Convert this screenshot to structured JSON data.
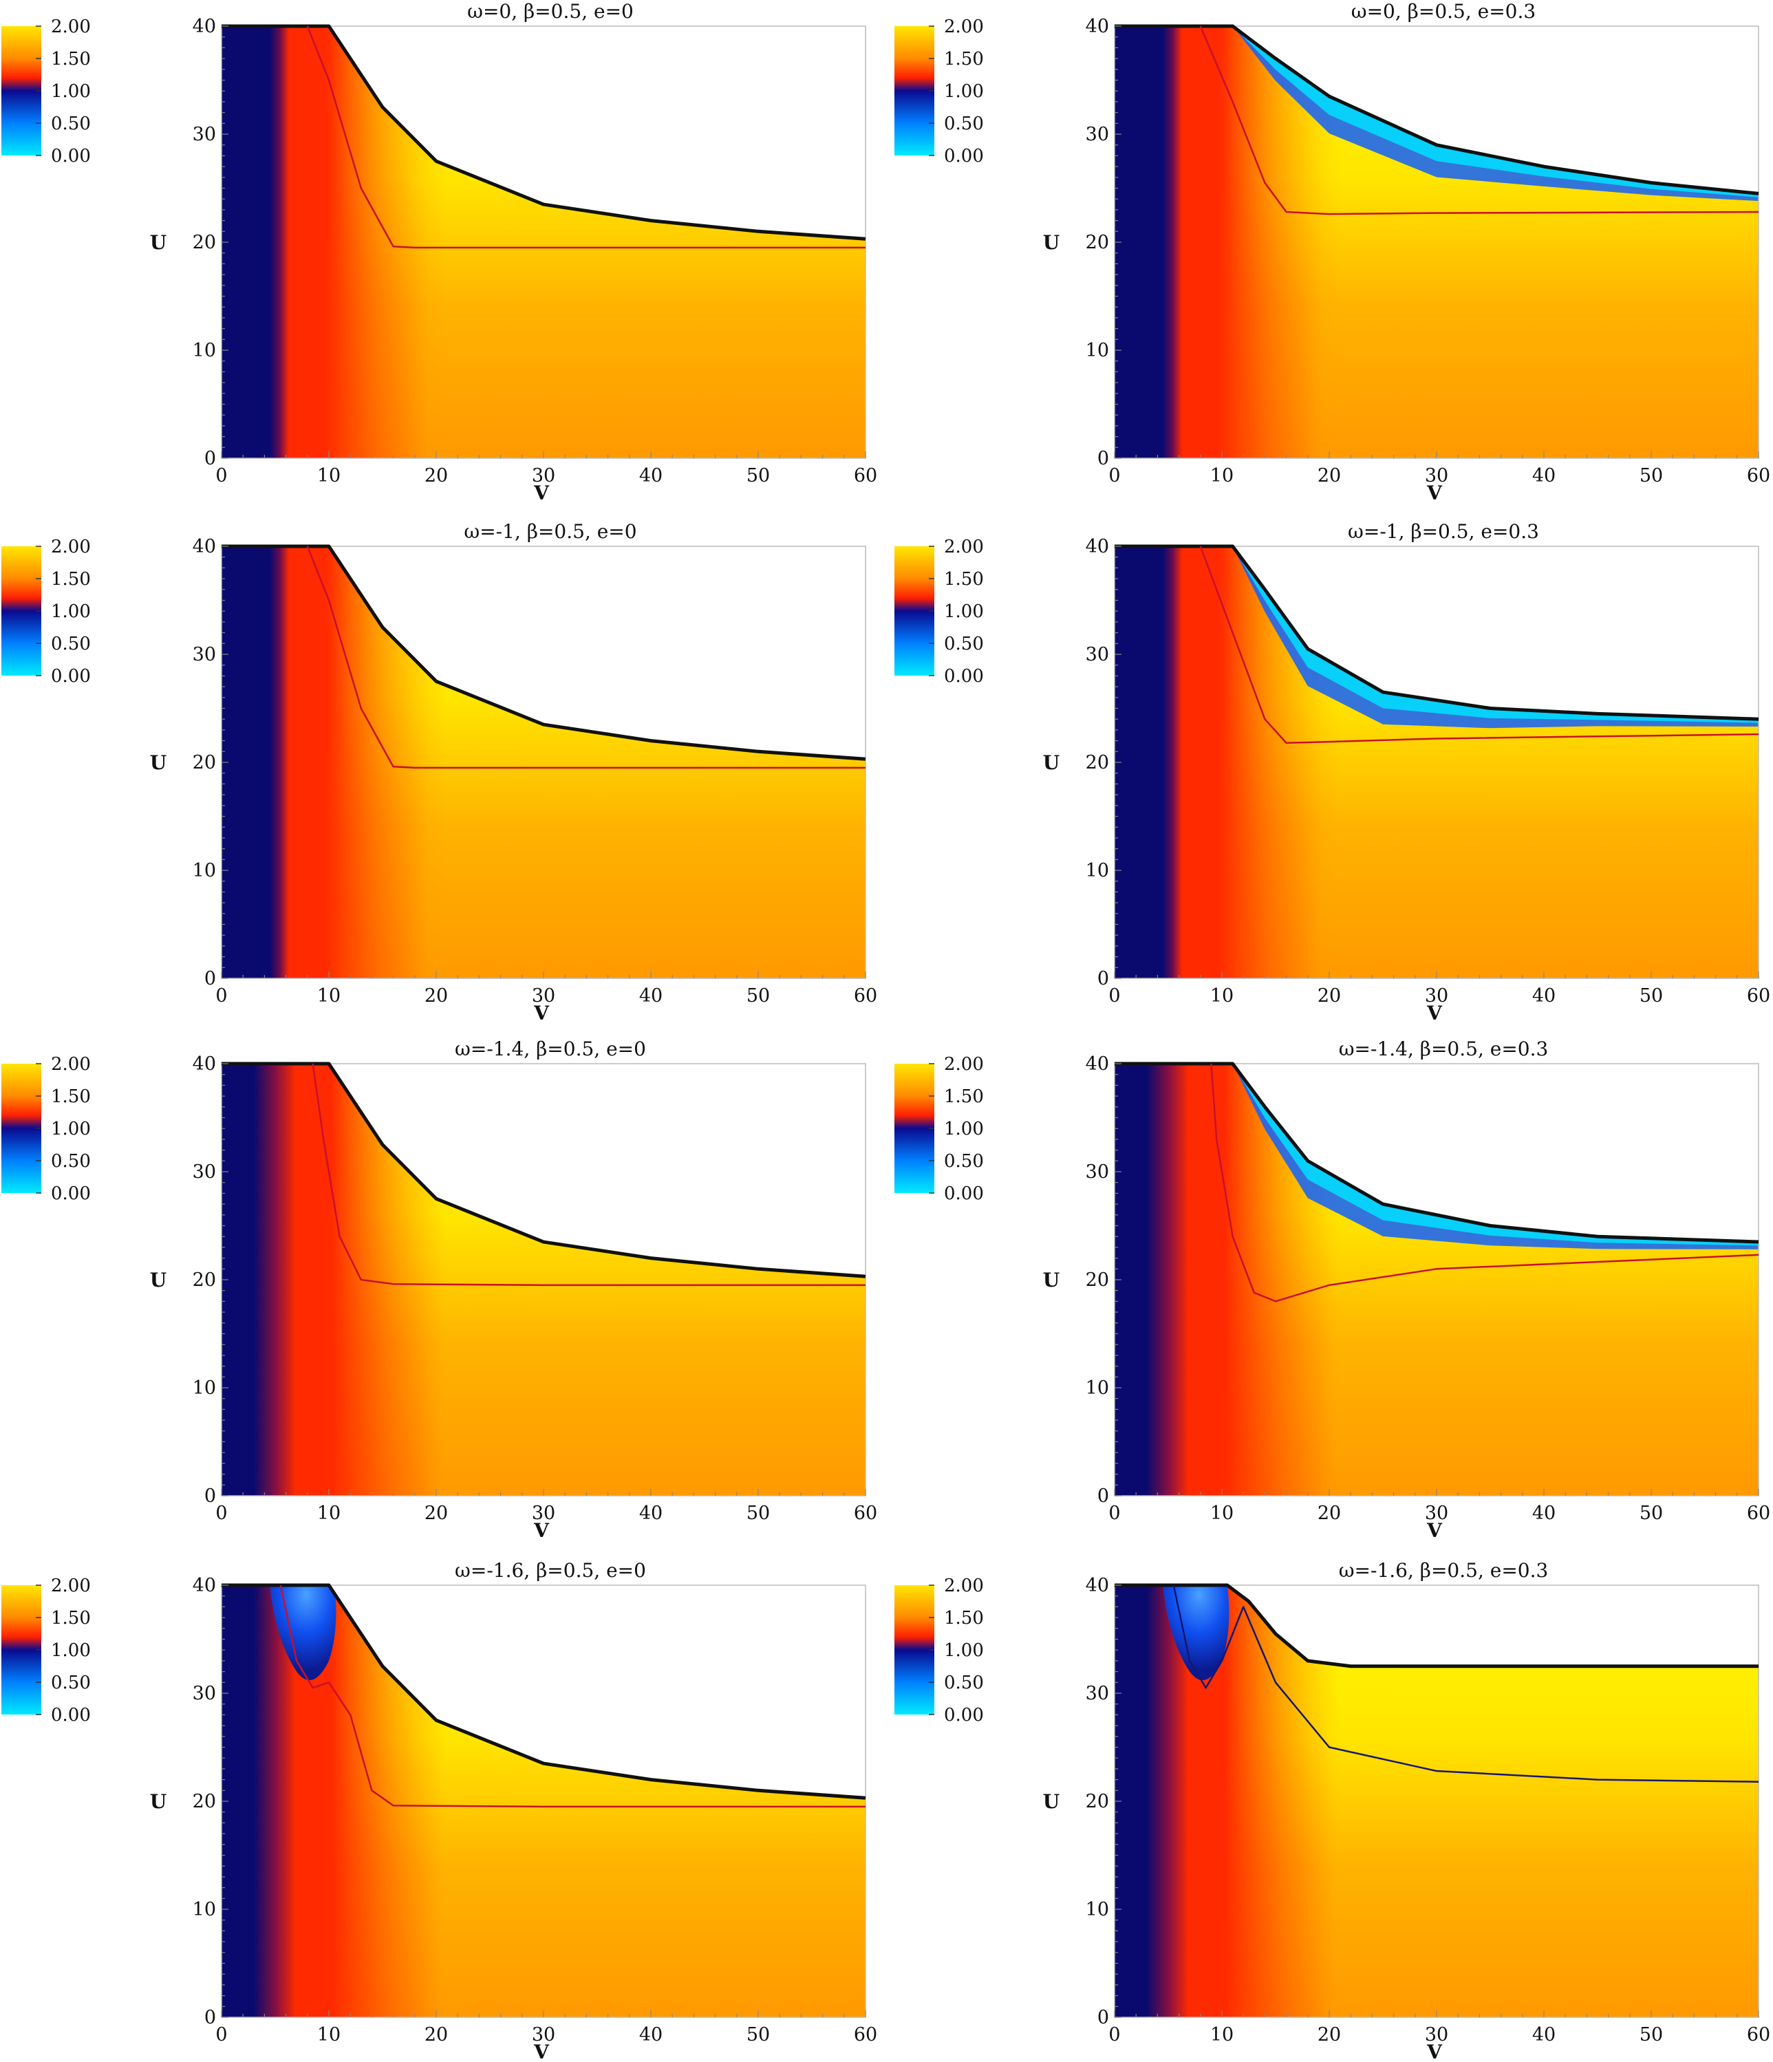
{
  "figure": {
    "colorbar_ticks": [
      "2.00",
      "1.50",
      "1.00",
      "0.50",
      "0.00"
    ],
    "colorbar_stops": [
      {
        "value": 2.0,
        "color": "#ffe600"
      },
      {
        "value": 1.5,
        "color": "#ff8a00"
      },
      {
        "value": 1.2,
        "color": "#ff2000"
      },
      {
        "value": 1.0,
        "color": "#0a0a90"
      },
      {
        "value": 0.5,
        "color": "#0080ff"
      },
      {
        "value": 0.0,
        "color": "#00eaff"
      }
    ],
    "colors": {
      "navy": "#0a0a6e",
      "red": "#ff2a00",
      "orange": "#ff9a00",
      "yellow": "#ffff00",
      "blue": "#1060ff",
      "cyan": "#00e0ff",
      "boundary": "#111111",
      "contour_red": "#c8102e",
      "contour_navy": "#16166e"
    }
  },
  "chart_data": [
    {
      "type": "heatmap",
      "title": "ω=0,   β=0.5,   e=0",
      "xlabel": "V",
      "ylabel": "U",
      "xlim": [
        0,
        60
      ],
      "ylim": [
        0,
        40
      ],
      "xticks": [
        "0",
        "10",
        "20",
        "30",
        "40",
        "50",
        "60"
      ],
      "yticks": [
        "0",
        "10",
        "20",
        "30",
        "40"
      ],
      "apparent_horizon": [
        [
          0,
          40
        ],
        [
          10,
          40
        ],
        [
          15,
          32.5
        ],
        [
          20,
          27.5
        ],
        [
          30,
          23.5
        ],
        [
          40,
          22
        ],
        [
          50,
          21
        ],
        [
          60,
          20.3
        ]
      ],
      "contour": [
        [
          8,
          40
        ],
        [
          10,
          35
        ],
        [
          13,
          25
        ],
        [
          16,
          19.6
        ],
        [
          18,
          19.5
        ],
        [
          30,
          19.5
        ],
        [
          60,
          19.5
        ]
      ],
      "cyan_band": false,
      "blue_patch": false
    },
    {
      "type": "heatmap",
      "title": "ω=0,   β=0.5,   e=0.3",
      "xlabel": "V",
      "ylabel": "U",
      "xlim": [
        0,
        60
      ],
      "ylim": [
        0,
        40
      ],
      "xticks": [
        "0",
        "10",
        "20",
        "30",
        "40",
        "50",
        "60"
      ],
      "yticks": [
        "0",
        "10",
        "20",
        "30",
        "40"
      ],
      "apparent_horizon": [
        [
          0,
          40
        ],
        [
          11,
          40
        ],
        [
          15,
          37
        ],
        [
          20,
          33.5
        ],
        [
          30,
          29
        ],
        [
          40,
          27
        ],
        [
          50,
          25.5
        ],
        [
          60,
          24.5
        ]
      ],
      "contour": [
        [
          8,
          40
        ],
        [
          11,
          33
        ],
        [
          14,
          25.5
        ],
        [
          16,
          22.8
        ],
        [
          20,
          22.6
        ],
        [
          30,
          22.7
        ],
        [
          60,
          22.8
        ]
      ],
      "cyan_band": true,
      "blue_patch": false
    },
    {
      "type": "heatmap",
      "title": "ω=-1,   β=0.5,   e=0",
      "xlabel": "V",
      "ylabel": "U",
      "xlim": [
        0,
        60
      ],
      "ylim": [
        0,
        40
      ],
      "xticks": [
        "0",
        "10",
        "20",
        "30",
        "40",
        "50",
        "60"
      ],
      "yticks": [
        "0",
        "10",
        "20",
        "30",
        "40"
      ],
      "apparent_horizon": [
        [
          0,
          40
        ],
        [
          10,
          40
        ],
        [
          15,
          32.5
        ],
        [
          20,
          27.5
        ],
        [
          30,
          23.5
        ],
        [
          40,
          22
        ],
        [
          50,
          21
        ],
        [
          60,
          20.3
        ]
      ],
      "contour": [
        [
          8,
          40
        ],
        [
          10,
          35
        ],
        [
          13,
          25
        ],
        [
          16,
          19.6
        ],
        [
          18,
          19.5
        ],
        [
          30,
          19.5
        ],
        [
          60,
          19.5
        ]
      ],
      "cyan_band": false,
      "blue_patch": false
    },
    {
      "type": "heatmap",
      "title": "ω=-1,   β=0.5,   e=0.3",
      "xlabel": "V",
      "ylabel": "U",
      "xlim": [
        0,
        60
      ],
      "ylim": [
        0,
        40
      ],
      "xticks": [
        "0",
        "10",
        "20",
        "30",
        "40",
        "50",
        "60"
      ],
      "yticks": [
        "0",
        "10",
        "20",
        "30",
        "40"
      ],
      "apparent_horizon": [
        [
          0,
          40
        ],
        [
          11,
          40
        ],
        [
          14,
          36
        ],
        [
          18,
          30.5
        ],
        [
          25,
          26.5
        ],
        [
          35,
          25
        ],
        [
          45,
          24.5
        ],
        [
          60,
          24
        ]
      ],
      "contour": [
        [
          8,
          40
        ],
        [
          11,
          32
        ],
        [
          14,
          24
        ],
        [
          16,
          21.8
        ],
        [
          20,
          21.9
        ],
        [
          30,
          22.2
        ],
        [
          60,
          22.6
        ]
      ],
      "cyan_band": true,
      "blue_patch": false
    },
    {
      "type": "heatmap",
      "title": "ω=-1.4,   β=0.5,   e=0",
      "xlabel": "V",
      "ylabel": "U",
      "xlim": [
        0,
        60
      ],
      "ylim": [
        0,
        40
      ],
      "xticks": [
        "0",
        "10",
        "20",
        "30",
        "40",
        "50",
        "60"
      ],
      "yticks": [
        "0",
        "10",
        "20",
        "30",
        "40"
      ],
      "apparent_horizon": [
        [
          0,
          40
        ],
        [
          10,
          40
        ],
        [
          15,
          32.5
        ],
        [
          20,
          27.5
        ],
        [
          30,
          23.5
        ],
        [
          40,
          22
        ],
        [
          50,
          21
        ],
        [
          60,
          20.3
        ]
      ],
      "contour": [
        [
          8.5,
          40
        ],
        [
          9.5,
          33
        ],
        [
          11,
          24
        ],
        [
          13,
          20
        ],
        [
          16,
          19.6
        ],
        [
          30,
          19.5
        ],
        [
          60,
          19.5
        ]
      ],
      "cyan_band": false,
      "blue_patch": false
    },
    {
      "type": "heatmap",
      "title": "ω=-1.4,   β=0.5,   e=0.3",
      "xlabel": "V",
      "ylabel": "U",
      "xlim": [
        0,
        60
      ],
      "ylim": [
        0,
        40
      ],
      "xticks": [
        "0",
        "10",
        "20",
        "30",
        "40",
        "50",
        "60"
      ],
      "yticks": [
        "0",
        "10",
        "20",
        "30",
        "40"
      ],
      "apparent_horizon": [
        [
          0,
          40
        ],
        [
          11,
          40
        ],
        [
          14,
          36
        ],
        [
          18,
          31
        ],
        [
          25,
          27
        ],
        [
          35,
          25
        ],
        [
          45,
          24
        ],
        [
          60,
          23.5
        ]
      ],
      "contour": [
        [
          9,
          40
        ],
        [
          9.5,
          33
        ],
        [
          11,
          24
        ],
        [
          13,
          18.8
        ],
        [
          15,
          18
        ],
        [
          20,
          19.5
        ],
        [
          30,
          21
        ],
        [
          60,
          22.3
        ]
      ],
      "cyan_band": true,
      "blue_patch": false
    },
    {
      "type": "heatmap",
      "title": "ω=-1.6,   β=0.5,   e=0",
      "xlabel": "V",
      "ylabel": "U",
      "xlim": [
        0,
        60
      ],
      "ylim": [
        0,
        40
      ],
      "xticks": [
        "0",
        "10",
        "20",
        "30",
        "40",
        "50",
        "60"
      ],
      "yticks": [
        "0",
        "10",
        "20",
        "30",
        "40"
      ],
      "apparent_horizon": [
        [
          0,
          40
        ],
        [
          10,
          40
        ],
        [
          15,
          32.5
        ],
        [
          20,
          27.5
        ],
        [
          30,
          23.5
        ],
        [
          40,
          22
        ],
        [
          50,
          21
        ],
        [
          60,
          20.3
        ]
      ],
      "contour": [
        [
          5.5,
          40
        ],
        [
          7,
          33
        ],
        [
          8.5,
          30.5
        ],
        [
          10,
          31
        ],
        [
          12,
          28
        ],
        [
          14,
          21
        ],
        [
          16,
          19.6
        ],
        [
          30,
          19.5
        ],
        [
          60,
          19.5
        ]
      ],
      "cyan_band": false,
      "blue_patch": true
    },
    {
      "type": "heatmap",
      "title": "ω=-1.6,   β=0.5,   e=0.3",
      "xlabel": "V",
      "ylabel": "U",
      "xlim": [
        0,
        60
      ],
      "ylim": [
        0,
        40
      ],
      "xticks": [
        "0",
        "10",
        "20",
        "30",
        "40",
        "50",
        "60"
      ],
      "yticks": [
        "0",
        "10",
        "20",
        "30",
        "40"
      ],
      "apparent_horizon": [
        [
          0,
          40
        ],
        [
          10.5,
          40
        ],
        [
          12.5,
          38.5
        ],
        [
          15,
          35.5
        ],
        [
          18,
          33
        ],
        [
          22,
          32.5
        ],
        [
          30,
          32.5
        ],
        [
          60,
          32.5
        ]
      ],
      "contour": [
        [
          5.5,
          40
        ],
        [
          7,
          33
        ],
        [
          8.5,
          30.5
        ],
        [
          10,
          33
        ],
        [
          12,
          38
        ],
        [
          15,
          31
        ],
        [
          20,
          25
        ],
        [
          30,
          22.8
        ],
        [
          45,
          22
        ],
        [
          60,
          21.8
        ]
      ],
      "cyan_band": false,
      "blue_patch": true
    }
  ]
}
